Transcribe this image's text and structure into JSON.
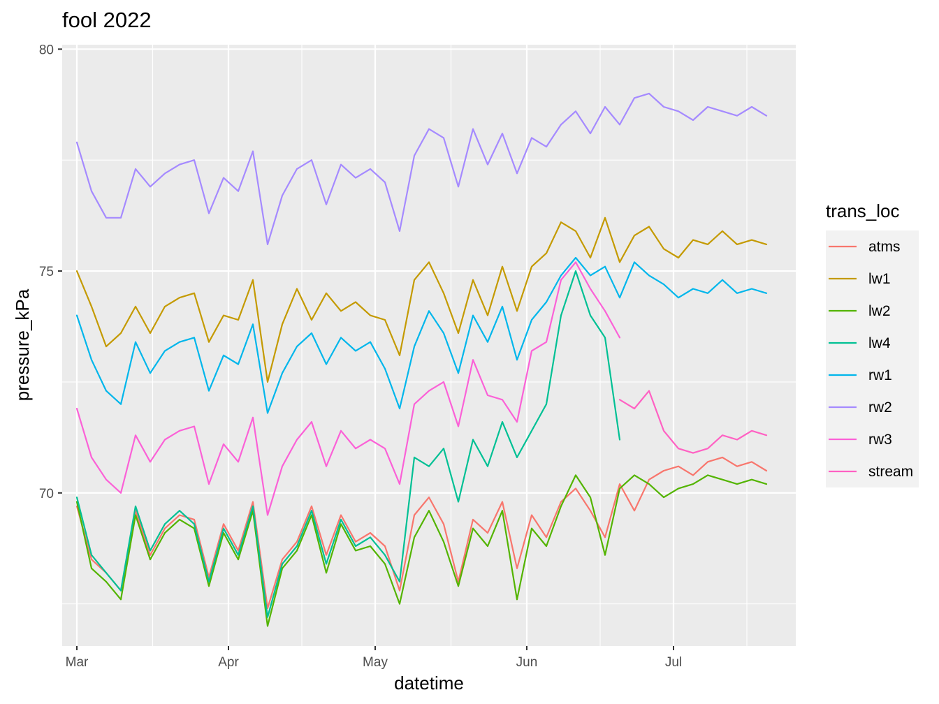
{
  "chart_data": {
    "type": "line",
    "title": "fool 2022",
    "xlabel": "datetime",
    "ylabel": "pressure_kPa",
    "x_ticks": [
      "Mar",
      "Apr",
      "May",
      "Jun",
      "Jul"
    ],
    "x_tick_dates": [
      "2022-03-01",
      "2022-04-01",
      "2022-05-01",
      "2022-06-01",
      "2022-07-01"
    ],
    "xlim": [
      "2022-02-26",
      "2022-07-26"
    ],
    "y_ticks": [
      70,
      75,
      80
    ],
    "ylim": [
      66.55,
      80.1
    ],
    "grid": true,
    "legend_title": "trans_loc",
    "legend_position": "right",
    "series": [
      {
        "name": "atms",
        "color": "#F8766D",
        "x": [
          "2022-03-01",
          "2022-03-04",
          "2022-03-07",
          "2022-03-10",
          "2022-03-13",
          "2022-03-16",
          "2022-03-19",
          "2022-03-22",
          "2022-03-25",
          "2022-03-28",
          "2022-03-31",
          "2022-04-03",
          "2022-04-06",
          "2022-04-09",
          "2022-04-12",
          "2022-04-15",
          "2022-04-18",
          "2022-04-21",
          "2022-04-24",
          "2022-04-27",
          "2022-04-30",
          "2022-05-03",
          "2022-05-06",
          "2022-05-09",
          "2022-05-12",
          "2022-05-15",
          "2022-05-18",
          "2022-05-21",
          "2022-05-24",
          "2022-05-27",
          "2022-05-30",
          "2022-06-02",
          "2022-06-05",
          "2022-06-08",
          "2022-06-11",
          "2022-06-14",
          "2022-06-17",
          "2022-06-20",
          "2022-06-23",
          "2022-06-26",
          "2022-06-29",
          "2022-07-02",
          "2022-07-05",
          "2022-07-08",
          "2022-07-11",
          "2022-07-14",
          "2022-07-17",
          "2022-07-20"
        ],
        "y": [
          69.7,
          68.5,
          68.2,
          67.8,
          69.6,
          68.6,
          69.2,
          69.5,
          69.4,
          68.1,
          69.3,
          68.7,
          69.8,
          67.4,
          68.5,
          68.9,
          69.7,
          68.6,
          69.5,
          68.9,
          69.1,
          68.8,
          67.8,
          69.5,
          69.9,
          69.3,
          68.0,
          69.4,
          69.1,
          69.8,
          68.3,
          69.5,
          69.0,
          69.8,
          70.1,
          69.6,
          69.0,
          70.2,
          69.6,
          70.3,
          70.5,
          70.6,
          70.4,
          70.7,
          70.8,
          70.6,
          70.7,
          70.5
        ]
      },
      {
        "name": "lw1",
        "color": "#C49A00",
        "x": [
          "2022-03-01",
          "2022-03-04",
          "2022-03-07",
          "2022-03-10",
          "2022-03-13",
          "2022-03-16",
          "2022-03-19",
          "2022-03-22",
          "2022-03-25",
          "2022-03-28",
          "2022-03-31",
          "2022-04-03",
          "2022-04-06",
          "2022-04-09",
          "2022-04-12",
          "2022-04-15",
          "2022-04-18",
          "2022-04-21",
          "2022-04-24",
          "2022-04-27",
          "2022-04-30",
          "2022-05-03",
          "2022-05-06",
          "2022-05-09",
          "2022-05-12",
          "2022-05-15",
          "2022-05-18",
          "2022-05-21",
          "2022-05-24",
          "2022-05-27",
          "2022-05-30",
          "2022-06-02",
          "2022-06-05",
          "2022-06-08",
          "2022-06-11",
          "2022-06-14",
          "2022-06-17",
          "2022-06-20",
          "2022-06-23",
          "2022-06-26",
          "2022-06-29",
          "2022-07-02",
          "2022-07-05",
          "2022-07-08",
          "2022-07-11",
          "2022-07-14",
          "2022-07-17",
          "2022-07-20"
        ],
        "y": [
          75.0,
          74.2,
          73.3,
          73.6,
          74.2,
          73.6,
          74.2,
          74.4,
          74.5,
          73.4,
          74.0,
          73.9,
          74.8,
          72.5,
          73.8,
          74.6,
          73.9,
          74.5,
          74.1,
          74.3,
          74.0,
          73.9,
          73.1,
          74.8,
          75.2,
          74.5,
          73.6,
          74.8,
          74.0,
          75.1,
          74.1,
          75.1,
          75.4,
          76.1,
          75.9,
          75.3,
          76.2,
          75.2,
          75.8,
          76.0,
          75.5,
          75.3,
          75.7,
          75.6,
          75.9,
          75.6,
          75.7,
          75.6
        ]
      },
      {
        "name": "lw2",
        "color": "#53B400",
        "x": [
          "2022-03-01",
          "2022-03-04",
          "2022-03-07",
          "2022-03-10",
          "2022-03-13",
          "2022-03-16",
          "2022-03-19",
          "2022-03-22",
          "2022-03-25",
          "2022-03-28",
          "2022-03-31",
          "2022-04-03",
          "2022-04-06",
          "2022-04-09",
          "2022-04-12",
          "2022-04-15",
          "2022-04-18",
          "2022-04-21",
          "2022-04-24",
          "2022-04-27",
          "2022-04-30",
          "2022-05-03",
          "2022-05-06",
          "2022-05-09",
          "2022-05-12",
          "2022-05-15",
          "2022-05-18",
          "2022-05-21",
          "2022-05-24",
          "2022-05-27",
          "2022-05-30",
          "2022-06-02",
          "2022-06-05",
          "2022-06-08",
          "2022-06-11",
          "2022-06-14",
          "2022-06-17",
          "2022-06-20",
          "2022-06-23",
          "2022-06-26",
          "2022-06-29",
          "2022-07-02",
          "2022-07-05",
          "2022-07-08",
          "2022-07-11",
          "2022-07-14",
          "2022-07-17",
          "2022-07-20"
        ],
        "y": [
          69.8,
          68.3,
          68.0,
          67.6,
          69.5,
          68.5,
          69.1,
          69.4,
          69.2,
          67.9,
          69.1,
          68.5,
          69.6,
          67.0,
          68.3,
          68.7,
          69.5,
          68.2,
          69.3,
          68.7,
          68.8,
          68.4,
          67.5,
          69.0,
          69.6,
          68.9,
          67.9,
          69.2,
          68.8,
          69.6,
          67.6,
          69.2,
          68.8,
          69.7,
          70.4,
          69.9,
          68.6,
          70.1,
          70.4,
          70.2,
          69.9,
          70.1,
          70.2,
          70.4,
          70.3,
          70.2,
          70.3,
          70.2
        ]
      },
      {
        "name": "lw4",
        "color": "#00C094",
        "x": [
          "2022-03-01",
          "2022-03-04",
          "2022-03-07",
          "2022-03-10",
          "2022-03-13",
          "2022-03-16",
          "2022-03-19",
          "2022-03-22",
          "2022-03-25",
          "2022-03-28",
          "2022-03-31",
          "2022-04-03",
          "2022-04-06",
          "2022-04-09",
          "2022-04-12",
          "2022-04-15",
          "2022-04-18",
          "2022-04-21",
          "2022-04-24",
          "2022-04-27",
          "2022-04-30",
          "2022-05-03",
          "2022-05-06",
          "2022-05-09",
          "2022-05-12",
          "2022-05-15",
          "2022-05-18",
          "2022-05-21",
          "2022-05-24",
          "2022-05-27",
          "2022-05-30",
          "2022-06-02",
          "2022-06-05",
          "2022-06-08",
          "2022-06-11",
          "2022-06-14",
          "2022-06-17",
          "2022-06-20"
        ],
        "y": [
          69.9,
          68.6,
          68.2,
          67.8,
          69.7,
          68.7,
          69.3,
          69.6,
          69.3,
          68.0,
          69.2,
          68.6,
          69.7,
          67.2,
          68.4,
          68.8,
          69.6,
          68.4,
          69.4,
          68.8,
          69.0,
          68.6,
          68.0,
          70.8,
          70.6,
          71.0,
          69.8,
          71.2,
          70.6,
          71.6,
          70.8,
          71.4,
          72.0,
          74.0,
          75.0,
          74.0,
          73.5,
          71.2
        ]
      },
      {
        "name": "rw1",
        "color": "#00B6EB",
        "x": [
          "2022-03-01",
          "2022-03-04",
          "2022-03-07",
          "2022-03-10",
          "2022-03-13",
          "2022-03-16",
          "2022-03-19",
          "2022-03-22",
          "2022-03-25",
          "2022-03-28",
          "2022-03-31",
          "2022-04-03",
          "2022-04-06",
          "2022-04-09",
          "2022-04-12",
          "2022-04-15",
          "2022-04-18",
          "2022-04-21",
          "2022-04-24",
          "2022-04-27",
          "2022-04-30",
          "2022-05-03",
          "2022-05-06",
          "2022-05-09",
          "2022-05-12",
          "2022-05-15",
          "2022-05-18",
          "2022-05-21",
          "2022-05-24",
          "2022-05-27",
          "2022-05-30",
          "2022-06-02",
          "2022-06-05",
          "2022-06-08",
          "2022-06-11",
          "2022-06-14",
          "2022-06-17",
          "2022-06-20",
          "2022-06-23",
          "2022-06-26",
          "2022-06-29",
          "2022-07-02",
          "2022-07-05",
          "2022-07-08",
          "2022-07-11",
          "2022-07-14",
          "2022-07-17",
          "2022-07-20"
        ],
        "y": [
          74.0,
          73.0,
          72.3,
          72.0,
          73.4,
          72.7,
          73.2,
          73.4,
          73.5,
          72.3,
          73.1,
          72.9,
          73.8,
          71.8,
          72.7,
          73.3,
          73.6,
          72.9,
          73.5,
          73.2,
          73.4,
          72.8,
          71.9,
          73.3,
          74.1,
          73.6,
          72.7,
          74.0,
          73.4,
          74.2,
          73.0,
          73.9,
          74.3,
          74.9,
          75.3,
          74.9,
          75.1,
          74.4,
          75.2,
          74.9,
          74.7,
          74.4,
          74.6,
          74.5,
          74.8,
          74.5,
          74.6,
          74.5
        ]
      },
      {
        "name": "rw2",
        "color": "#A58AFF",
        "x": [
          "2022-03-01",
          "2022-03-04",
          "2022-03-07",
          "2022-03-10",
          "2022-03-13",
          "2022-03-16",
          "2022-03-19",
          "2022-03-22",
          "2022-03-25",
          "2022-03-28",
          "2022-03-31",
          "2022-04-03",
          "2022-04-06",
          "2022-04-09",
          "2022-04-12",
          "2022-04-15",
          "2022-04-18",
          "2022-04-21",
          "2022-04-24",
          "2022-04-27",
          "2022-04-30",
          "2022-05-03",
          "2022-05-06",
          "2022-05-09",
          "2022-05-12",
          "2022-05-15",
          "2022-05-18",
          "2022-05-21",
          "2022-05-24",
          "2022-05-27",
          "2022-05-30",
          "2022-06-02",
          "2022-06-05",
          "2022-06-08",
          "2022-06-11",
          "2022-06-14",
          "2022-06-17",
          "2022-06-20",
          "2022-06-23",
          "2022-06-26",
          "2022-06-29",
          "2022-07-02",
          "2022-07-05",
          "2022-07-08",
          "2022-07-11",
          "2022-07-14",
          "2022-07-17",
          "2022-07-20"
        ],
        "y": [
          77.9,
          76.8,
          76.2,
          76.2,
          77.3,
          76.9,
          77.2,
          77.4,
          77.5,
          76.3,
          77.1,
          76.8,
          77.7,
          75.6,
          76.7,
          77.3,
          77.5,
          76.5,
          77.4,
          77.1,
          77.3,
          77.0,
          75.9,
          77.6,
          78.2,
          78.0,
          76.9,
          78.2,
          77.4,
          78.1,
          77.2,
          78.0,
          77.8,
          78.3,
          78.6,
          78.1,
          78.7,
          78.3,
          78.9,
          79.0,
          78.7,
          78.6,
          78.4,
          78.7,
          78.6,
          78.5,
          78.7,
          78.5
        ]
      },
      {
        "name": "rw3",
        "color": "#FB61D7",
        "x": [
          "2022-03-01",
          "2022-03-04",
          "2022-03-07",
          "2022-03-10",
          "2022-03-13",
          "2022-03-16",
          "2022-03-19",
          "2022-03-22",
          "2022-03-25",
          "2022-03-28",
          "2022-03-31",
          "2022-04-03",
          "2022-04-06",
          "2022-04-09",
          "2022-04-12",
          "2022-04-15",
          "2022-04-18",
          "2022-04-21",
          "2022-04-24",
          "2022-04-27",
          "2022-04-30",
          "2022-05-03",
          "2022-05-06",
          "2022-05-09",
          "2022-05-12",
          "2022-05-15",
          "2022-05-18",
          "2022-05-21",
          "2022-05-24",
          "2022-05-27",
          "2022-05-30",
          "2022-06-02",
          "2022-06-05",
          "2022-06-08",
          "2022-06-11",
          "2022-06-14",
          "2022-06-17",
          "2022-06-20"
        ],
        "y": [
          71.9,
          70.8,
          70.3,
          70.0,
          71.3,
          70.7,
          71.2,
          71.4,
          71.5,
          70.2,
          71.1,
          70.7,
          71.7,
          69.5,
          70.6,
          71.2,
          71.6,
          70.6,
          71.4,
          71.0,
          71.2,
          71.0,
          70.2,
          72.0,
          72.3,
          72.5,
          71.5,
          73.0,
          72.2,
          72.1,
          71.6,
          73.2,
          73.4,
          74.8,
          75.2,
          74.6,
          74.1,
          73.5
        ]
      },
      {
        "name": "stream",
        "color": "#FF61C3",
        "x": [
          "2022-06-20",
          "2022-06-23",
          "2022-06-26",
          "2022-06-29",
          "2022-07-02",
          "2022-07-05",
          "2022-07-08",
          "2022-07-11",
          "2022-07-14",
          "2022-07-17",
          "2022-07-20"
        ],
        "y": [
          72.1,
          71.9,
          72.3,
          71.4,
          71.0,
          70.9,
          71.0,
          71.3,
          71.2,
          71.4,
          71.3
        ]
      }
    ]
  }
}
